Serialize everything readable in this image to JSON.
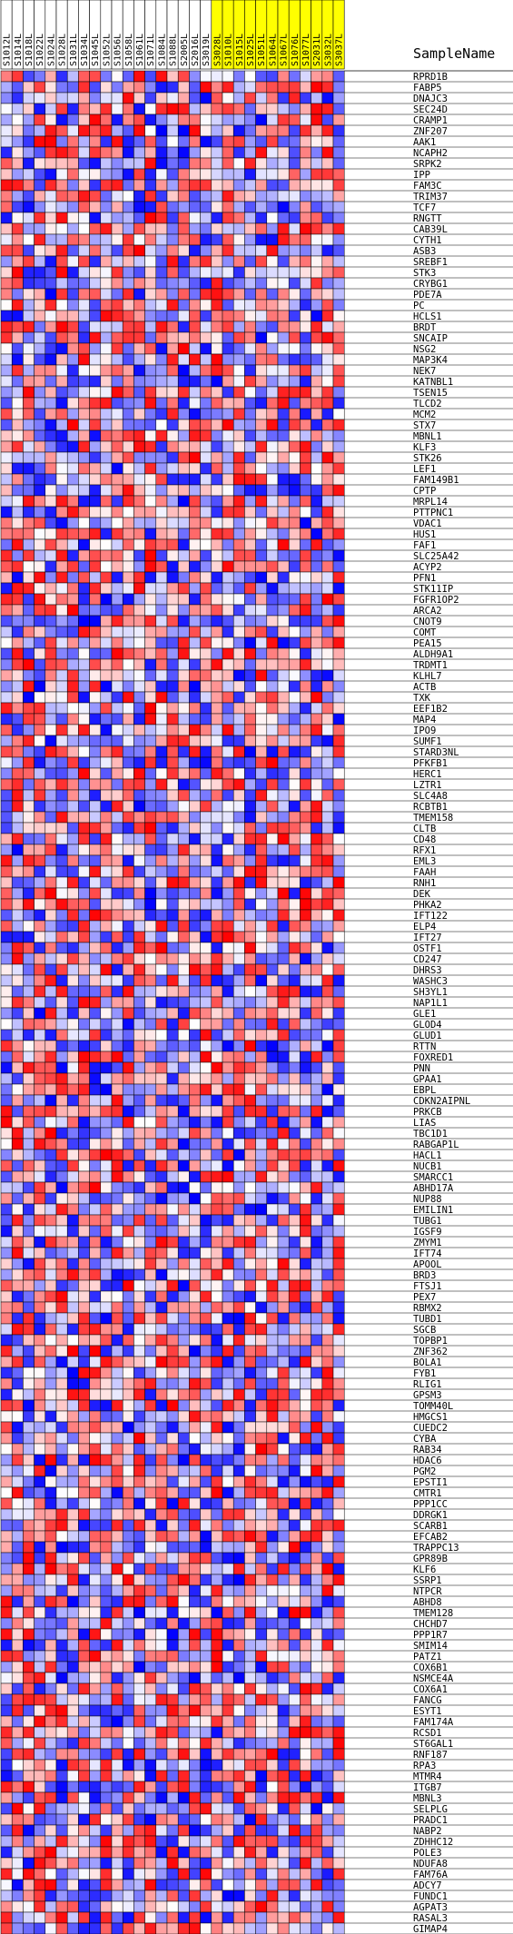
{
  "chart_data": {
    "type": "heatmap",
    "corner_label": "SampleName",
    "columns": [
      {
        "name": "S1012L",
        "group": "white"
      },
      {
        "name": "S1014L",
        "group": "white"
      },
      {
        "name": "S1018L",
        "group": "white"
      },
      {
        "name": "S1022L",
        "group": "white"
      },
      {
        "name": "S1024L",
        "group": "white"
      },
      {
        "name": "S1028L",
        "group": "white"
      },
      {
        "name": "S1031L",
        "group": "white"
      },
      {
        "name": "S1034L",
        "group": "white"
      },
      {
        "name": "S1045L",
        "group": "white"
      },
      {
        "name": "S1052L",
        "group": "white"
      },
      {
        "name": "S1056L",
        "group": "white"
      },
      {
        "name": "S1058L",
        "group": "white"
      },
      {
        "name": "S1061L",
        "group": "white"
      },
      {
        "name": "S1071L",
        "group": "white"
      },
      {
        "name": "S1084L",
        "group": "white"
      },
      {
        "name": "S1088L",
        "group": "white"
      },
      {
        "name": "S2005L",
        "group": "white"
      },
      {
        "name": "S2016L",
        "group": "white"
      },
      {
        "name": "S3019L",
        "group": "white"
      },
      {
        "name": "S3028L",
        "group": "yellow"
      },
      {
        "name": "S1010L",
        "group": "yellow"
      },
      {
        "name": "S1015L",
        "group": "yellow"
      },
      {
        "name": "S1025L",
        "group": "yellow"
      },
      {
        "name": "S1051L",
        "group": "yellow"
      },
      {
        "name": "S1064L",
        "group": "yellow"
      },
      {
        "name": "S1067L",
        "group": "yellow"
      },
      {
        "name": "S1076L",
        "group": "yellow"
      },
      {
        "name": "S1077L",
        "group": "yellow"
      },
      {
        "name": "S2031L",
        "group": "yellow"
      },
      {
        "name": "S3032L",
        "group": "yellow"
      },
      {
        "name": "S3037L",
        "group": "yellow"
      }
    ],
    "rows": [
      "RPRD1B",
      "FABP5",
      "DNAJC3",
      "SEC24D",
      "CRAMP1",
      "ZNF207",
      "AAK1",
      "NCAPH2",
      "SRPK2",
      "IPP",
      "FAM3C",
      "TRIM37",
      "TCF7",
      "RNGTT",
      "CAB39L",
      "CYTH1",
      "ASB3",
      "SREBF1",
      "STK3",
      "CRYBG1",
      "PDE7A",
      "PC",
      "HCLS1",
      "BRDT",
      "SNCAIP",
      "NSG2",
      "MAP3K4",
      "NEK7",
      "KATNBL1",
      "TSEN15",
      "TLCD2",
      "MCM2",
      "STX7",
      "MBNL1",
      "KLF3",
      "STK26",
      "LEF1",
      "FAM149B1",
      "CPTP",
      "MRPL14",
      "PTTPNC1",
      "VDAC1",
      "HUS1",
      "FAF1",
      "SLC25A42",
      "ACYP2",
      "PFN1",
      "STK11IP",
      "FGFR1OP2",
      "ARCA2",
      "CNOT9",
      "COMT",
      "PEA15",
      "ALDH9A1",
      "TRDMT1",
      "KLHL7",
      "ACTB",
      "TXK",
      "EEF1B2",
      "MAP4",
      "IPO9",
      "SUMF1",
      "STARD3NL",
      "PFKFB1",
      "HERC1",
      "LZTR1",
      "SLC4A8",
      "RCBTB1",
      "TMEM158",
      "CLTB",
      "CD48",
      "RFX1",
      "EML3",
      "FAAH",
      "RNH1",
      "DEK",
      "PHKA2",
      "IFT122",
      "ELP4",
      "IFT27",
      "OSTF1",
      "CD247",
      "DHRS3",
      "WASHC3",
      "SH3YL1",
      "NAP1L1",
      "GLE1",
      "GLOD4",
      "GLUD1",
      "RTTN",
      "FOXRED1",
      "PNN",
      "GPAA1",
      "EBPL",
      "CDKN2AIPNL",
      "PRKCB",
      "LIAS",
      "TBC1D1",
      "RABGAP1L",
      "HACL1",
      "NUCB1",
      "SMARCC1",
      "ABHD17A",
      "NUP88",
      "EMILIN1",
      "TUBG1",
      "IGSF9",
      "ZMYM1",
      "IFT74",
      "APOOL",
      "BRD3",
      "FTSJ1",
      "PEX7",
      "RBMX2",
      "TUBD1",
      "SGCB",
      "TOPBP1",
      "ZNF362",
      "BOLA1",
      "FYB1",
      "RLIG1",
      "GPSM3",
      "TOMM40L",
      "HMGCS1",
      "CUEDC2",
      "CYBA",
      "RAB34",
      "HDAC6",
      "PGM2",
      "EPSTI1",
      "CMTR1",
      "PPP1CC",
      "DDRGK1",
      "SCARB1",
      "EFCAB2",
      "TRAPPC13",
      "GPR89B",
      "KLF6",
      "SSRP1",
      "NTPCR",
      "ABHD8",
      "TMEM128",
      "CHCHD7",
      "PPP1R7",
      "SMIM14",
      "PATZ1",
      "COX6B1",
      "NSMCE4A",
      "COX6A1",
      "FANCG",
      "ESYT1",
      "FAM174A",
      "RCSD1",
      "ST6GAL1",
      "RNF187",
      "RPA3",
      "MTMR4",
      "ITGB7",
      "MBNL3",
      "SELPLG",
      "PRADC1",
      "NABP2",
      "ZDHHC12",
      "POLE3",
      "NDUFA8",
      "FAM76A",
      "ADCY7",
      "FUNDC1",
      "AGPAT3",
      "RASAL3",
      "GIMAP4"
    ],
    "colors": {
      "high": "#ff0000",
      "mid": "#ffffff",
      "low": "#0000ff",
      "yellow_header": "#ffff00",
      "grid": "#000000"
    },
    "values": []
  }
}
